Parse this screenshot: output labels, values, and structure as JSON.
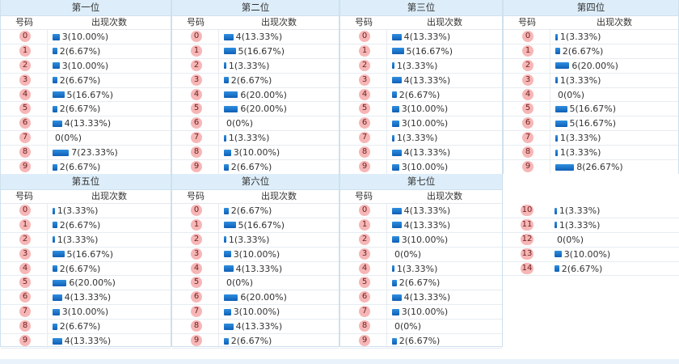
{
  "header_labels": {
    "number": "号码",
    "count": "出现次数"
  },
  "panels": [
    {
      "title": "第一位",
      "rows": [
        {
          "n": "0",
          "c": 3,
          "t": "3(10.00%)"
        },
        {
          "n": "1",
          "c": 2,
          "t": "2(6.67%)"
        },
        {
          "n": "2",
          "c": 3,
          "t": "3(10.00%)"
        },
        {
          "n": "3",
          "c": 2,
          "t": "2(6.67%)"
        },
        {
          "n": "4",
          "c": 5,
          "t": "5(16.67%)"
        },
        {
          "n": "5",
          "c": 2,
          "t": "2(6.67%)"
        },
        {
          "n": "6",
          "c": 4,
          "t": "4(13.33%)"
        },
        {
          "n": "7",
          "c": 0,
          "t": "0(0%)"
        },
        {
          "n": "8",
          "c": 7,
          "t": "7(23.33%)"
        },
        {
          "n": "9",
          "c": 2,
          "t": "2(6.67%)"
        }
      ]
    },
    {
      "title": "第二位",
      "rows": [
        {
          "n": "0",
          "c": 4,
          "t": "4(13.33%)"
        },
        {
          "n": "1",
          "c": 5,
          "t": "5(16.67%)"
        },
        {
          "n": "2",
          "c": 1,
          "t": "1(3.33%)"
        },
        {
          "n": "3",
          "c": 2,
          "t": "2(6.67%)"
        },
        {
          "n": "4",
          "c": 6,
          "t": "6(20.00%)"
        },
        {
          "n": "5",
          "c": 6,
          "t": "6(20.00%)"
        },
        {
          "n": "6",
          "c": 0,
          "t": "0(0%)"
        },
        {
          "n": "7",
          "c": 1,
          "t": "1(3.33%)"
        },
        {
          "n": "8",
          "c": 3,
          "t": "3(10.00%)"
        },
        {
          "n": "9",
          "c": 2,
          "t": "2(6.67%)"
        }
      ]
    },
    {
      "title": "第三位",
      "rows": [
        {
          "n": "0",
          "c": 4,
          "t": "4(13.33%)"
        },
        {
          "n": "1",
          "c": 5,
          "t": "5(16.67%)"
        },
        {
          "n": "2",
          "c": 1,
          "t": "1(3.33%)"
        },
        {
          "n": "3",
          "c": 4,
          "t": "4(13.33%)"
        },
        {
          "n": "4",
          "c": 2,
          "t": "2(6.67%)"
        },
        {
          "n": "5",
          "c": 3,
          "t": "3(10.00%)"
        },
        {
          "n": "6",
          "c": 3,
          "t": "3(10.00%)"
        },
        {
          "n": "7",
          "c": 1,
          "t": "1(3.33%)"
        },
        {
          "n": "8",
          "c": 4,
          "t": "4(13.33%)"
        },
        {
          "n": "9",
          "c": 3,
          "t": "3(10.00%)"
        }
      ]
    },
    {
      "title": "第四位",
      "rows": [
        {
          "n": "0",
          "c": 1,
          "t": "1(3.33%)"
        },
        {
          "n": "1",
          "c": 2,
          "t": "2(6.67%)"
        },
        {
          "n": "2",
          "c": 6,
          "t": "6(20.00%)"
        },
        {
          "n": "3",
          "c": 1,
          "t": "1(3.33%)"
        },
        {
          "n": "4",
          "c": 0,
          "t": "0(0%)"
        },
        {
          "n": "5",
          "c": 5,
          "t": "5(16.67%)"
        },
        {
          "n": "6",
          "c": 5,
          "t": "5(16.67%)"
        },
        {
          "n": "7",
          "c": 1,
          "t": "1(3.33%)"
        },
        {
          "n": "8",
          "c": 1,
          "t": "1(3.33%)"
        },
        {
          "n": "9",
          "c": 8,
          "t": "8(26.67%)"
        }
      ]
    },
    {
      "title": "第五位",
      "rows": [
        {
          "n": "0",
          "c": 1,
          "t": "1(3.33%)"
        },
        {
          "n": "1",
          "c": 2,
          "t": "2(6.67%)"
        },
        {
          "n": "2",
          "c": 1,
          "t": "1(3.33%)"
        },
        {
          "n": "3",
          "c": 5,
          "t": "5(16.67%)"
        },
        {
          "n": "4",
          "c": 2,
          "t": "2(6.67%)"
        },
        {
          "n": "5",
          "c": 6,
          "t": "6(20.00%)"
        },
        {
          "n": "6",
          "c": 4,
          "t": "4(13.33%)"
        },
        {
          "n": "7",
          "c": 3,
          "t": "3(10.00%)"
        },
        {
          "n": "8",
          "c": 2,
          "t": "2(6.67%)"
        },
        {
          "n": "9",
          "c": 4,
          "t": "4(13.33%)"
        }
      ]
    },
    {
      "title": "第六位",
      "rows": [
        {
          "n": "0",
          "c": 2,
          "t": "2(6.67%)"
        },
        {
          "n": "1",
          "c": 5,
          "t": "5(16.67%)"
        },
        {
          "n": "2",
          "c": 1,
          "t": "1(3.33%)"
        },
        {
          "n": "3",
          "c": 3,
          "t": "3(10.00%)"
        },
        {
          "n": "4",
          "c": 4,
          "t": "4(13.33%)"
        },
        {
          "n": "5",
          "c": 0,
          "t": "0(0%)"
        },
        {
          "n": "6",
          "c": 6,
          "t": "6(20.00%)"
        },
        {
          "n": "7",
          "c": 3,
          "t": "3(10.00%)"
        },
        {
          "n": "8",
          "c": 4,
          "t": "4(13.33%)"
        },
        {
          "n": "9",
          "c": 2,
          "t": "2(6.67%)"
        }
      ]
    },
    {
      "title": "第七位",
      "rows": [
        {
          "n": "0",
          "c": 4,
          "t": "4(13.33%)"
        },
        {
          "n": "1",
          "c": 4,
          "t": "4(13.33%)"
        },
        {
          "n": "2",
          "c": 3,
          "t": "3(10.00%)"
        },
        {
          "n": "3",
          "c": 0,
          "t": "0(0%)"
        },
        {
          "n": "4",
          "c": 1,
          "t": "1(3.33%)"
        },
        {
          "n": "5",
          "c": 2,
          "t": "2(6.67%)"
        },
        {
          "n": "6",
          "c": 4,
          "t": "4(13.33%)"
        },
        {
          "n": "7",
          "c": 3,
          "t": "3(10.00%)"
        },
        {
          "n": "8",
          "c": 0,
          "t": "0(0%)"
        },
        {
          "n": "9",
          "c": 2,
          "t": "2(6.67%)"
        }
      ]
    },
    {
      "title": "",
      "rows": [
        {
          "n": "10",
          "c": 1,
          "t": "1(3.33%)"
        },
        {
          "n": "11",
          "c": 1,
          "t": "1(3.33%)"
        },
        {
          "n": "12",
          "c": 0,
          "t": "0(0%)"
        },
        {
          "n": "13",
          "c": 3,
          "t": "3(10.00%)"
        },
        {
          "n": "14",
          "c": 2,
          "t": "2(6.67%)"
        }
      ]
    }
  ],
  "colors": {
    "header_bg": "#ddeefa",
    "ball": "#f7b6b6",
    "bar": "#1a73cc"
  }
}
